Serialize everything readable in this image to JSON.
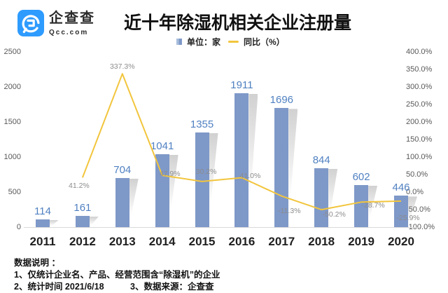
{
  "logo": {
    "name": "企查查",
    "domain": "Qcc.com",
    "brand_color": "#2e9bff"
  },
  "chart_data": {
    "type": "bar",
    "title": "近十年除湿机相关企业注册量",
    "categories": [
      "2011",
      "2012",
      "2013",
      "2014",
      "2015",
      "2016",
      "2017",
      "2018",
      "2019",
      "2020"
    ],
    "series": [
      {
        "name": "单位：家",
        "type": "bar",
        "color": "#7e98c8",
        "values": [
          114,
          161,
          704,
          1041,
          1355,
          1911,
          1696,
          844,
          602,
          446
        ]
      },
      {
        "name": "同比（%）",
        "type": "line",
        "color": "#f2c53d",
        "values": [
          null,
          41.2,
          337.3,
          47.9,
          30.2,
          41.0,
          -11.3,
          -50.2,
          -28.7,
          -25.9
        ]
      }
    ],
    "left_axis": {
      "min": 0,
      "max": 2500,
      "step": 500
    },
    "right_axis": {
      "min": -100,
      "max": 400,
      "step": 50,
      "format": "percent_1dp"
    },
    "grid": false,
    "legend_position": "top",
    "value_label_color": "#5081c2",
    "pct_label_color": "#8c8c8c",
    "xlabel": "",
    "ylabel": ""
  },
  "footer": {
    "heading": "数据说明 ：",
    "line1": "1、仅统计企业名、产品、经营范围含“除湿机”的企业",
    "line2_left": "2、统计时间 2021/6/18",
    "line2_right": "3、数据来源：企查查"
  }
}
